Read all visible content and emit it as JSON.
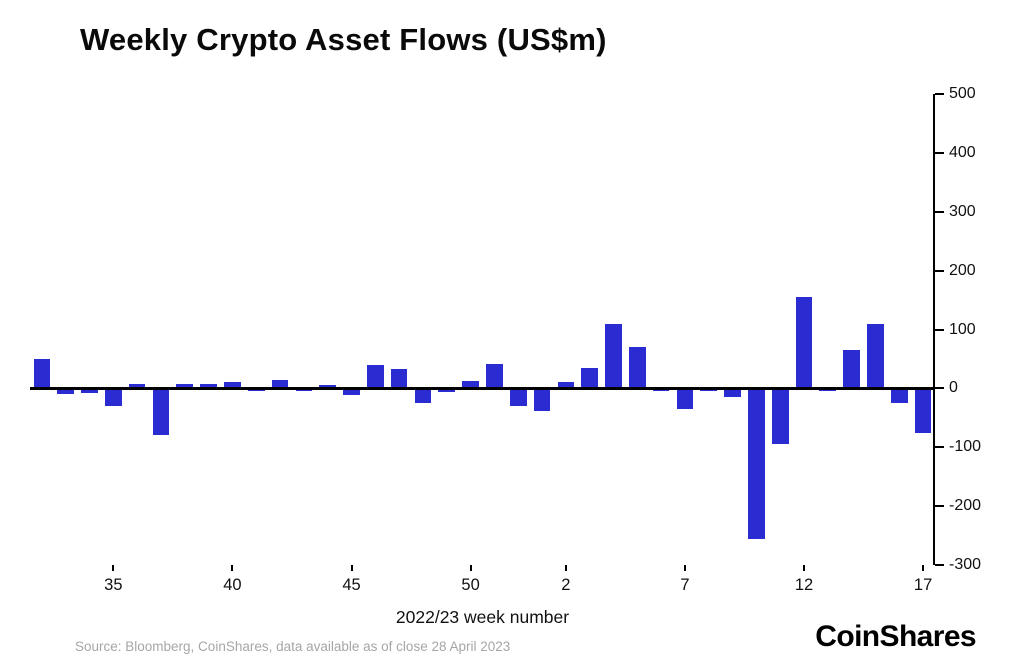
{
  "page": {
    "title": "Weekly Crypto Asset Flows (US$m)"
  },
  "footer": {
    "source": "Source: Bloomberg, CoinShares, data available as of close 28 April 2023",
    "brand": "CoinShares"
  },
  "chart_data": {
    "type": "bar",
    "title": "Weekly Crypto Asset Flows (US$m)",
    "xlabel": "2022/23 week number",
    "ylabel": "",
    "ylim": [
      -300,
      500
    ],
    "yticks": [
      500,
      400,
      300,
      200,
      100,
      0,
      -100,
      -200,
      -300
    ],
    "x_tick_labels": [
      "35",
      "40",
      "45",
      "50",
      "2",
      "7",
      "12",
      "17"
    ],
    "bar_color": "#2b2bd2",
    "axis_color": "#000000",
    "grid": false,
    "legend_position": "none",
    "categories": [
      "32",
      "33",
      "34",
      "35",
      "36",
      "37",
      "38",
      "39",
      "40",
      "41",
      "42",
      "43",
      "44",
      "45",
      "46",
      "47",
      "48",
      "49",
      "50",
      "51",
      "52",
      "1",
      "2",
      "3",
      "4",
      "5",
      "6",
      "7",
      "8",
      "9",
      "10",
      "11",
      "12",
      "13",
      "14",
      "15",
      "16",
      "17"
    ],
    "values": [
      50,
      -10,
      -8,
      -30,
      8,
      -80,
      8,
      8,
      10,
      -5,
      15,
      -4,
      5,
      -12,
      40,
      33,
      -25,
      -6,
      12,
      42,
      -30,
      -38,
      10,
      35,
      110,
      70,
      -5,
      -35,
      -4,
      -15,
      -255,
      -95,
      155,
      -4,
      65,
      110,
      -25,
      -75
    ]
  }
}
